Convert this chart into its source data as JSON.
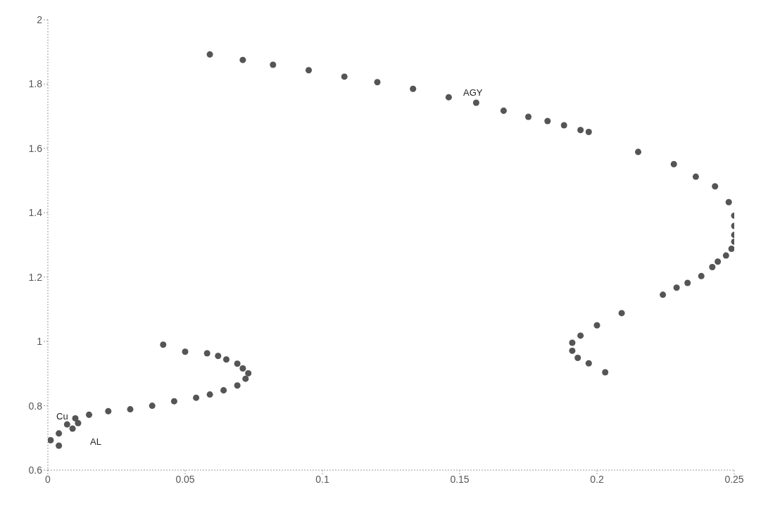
{
  "chart_data": {
    "type": "scatter",
    "xlim": [
      0,
      0.25
    ],
    "ylim": [
      0.6,
      2
    ],
    "xticks": [
      0,
      0.05,
      0.1,
      0.15,
      0.2,
      0.25
    ],
    "yticks": [
      0.6,
      0.8,
      1,
      1.2,
      1.4,
      1.6,
      1.8,
      2
    ],
    "grid": false,
    "marker": "circle",
    "legend": false,
    "annotations": [
      "AGY",
      "Cu",
      "AL"
    ],
    "series": [
      {
        "color": "#555555",
        "x": [
          0.059,
          0.071,
          0.082,
          0.095,
          0.108,
          0.12,
          0.133,
          0.146,
          0.156,
          0.166,
          0.175,
          0.182,
          0.188,
          0.194,
          0.197,
          0.215,
          0.228,
          0.236,
          0.243,
          0.248,
          0.25,
          0.25,
          0.25,
          0.25,
          0.249,
          0.247,
          0.244,
          0.242,
          0.238,
          0.233,
          0.229,
          0.224,
          0.209,
          0.2,
          0.194,
          0.191,
          0.191,
          0.193,
          0.197,
          0.203
        ],
        "values": [
          1.892,
          1.875,
          1.86,
          1.843,
          1.823,
          1.806,
          1.785,
          1.759,
          1.742,
          1.717,
          1.698,
          1.685,
          1.672,
          1.657,
          1.651,
          1.589,
          1.551,
          1.512,
          1.482,
          1.433,
          1.391,
          1.359,
          1.331,
          1.31,
          1.288,
          1.267,
          1.248,
          1.231,
          1.203,
          1.182,
          1.167,
          1.145,
          1.088,
          1.05,
          1.018,
          0.996,
          0.971,
          0.949,
          0.932,
          0.904
        ]
      },
      {
        "color": "#555555",
        "x": [
          0.042,
          0.05,
          0.058,
          0.062,
          0.065,
          0.069,
          0.071,
          0.073,
          0.072,
          0.069,
          0.064,
          0.059,
          0.054,
          0.046,
          0.038,
          0.03,
          0.022,
          0.015,
          0.01,
          0.007,
          0.004,
          0.001,
          0.004,
          0.011,
          0.009
        ],
        "values": [
          0.99,
          0.968,
          0.963,
          0.955,
          0.944,
          0.931,
          0.916,
          0.901,
          0.884,
          0.863,
          0.848,
          0.835,
          0.825,
          0.814,
          0.8,
          0.789,
          0.783,
          0.772,
          0.761,
          0.742,
          0.714,
          0.693,
          0.676,
          0.746,
          0.729
        ]
      }
    ]
  }
}
